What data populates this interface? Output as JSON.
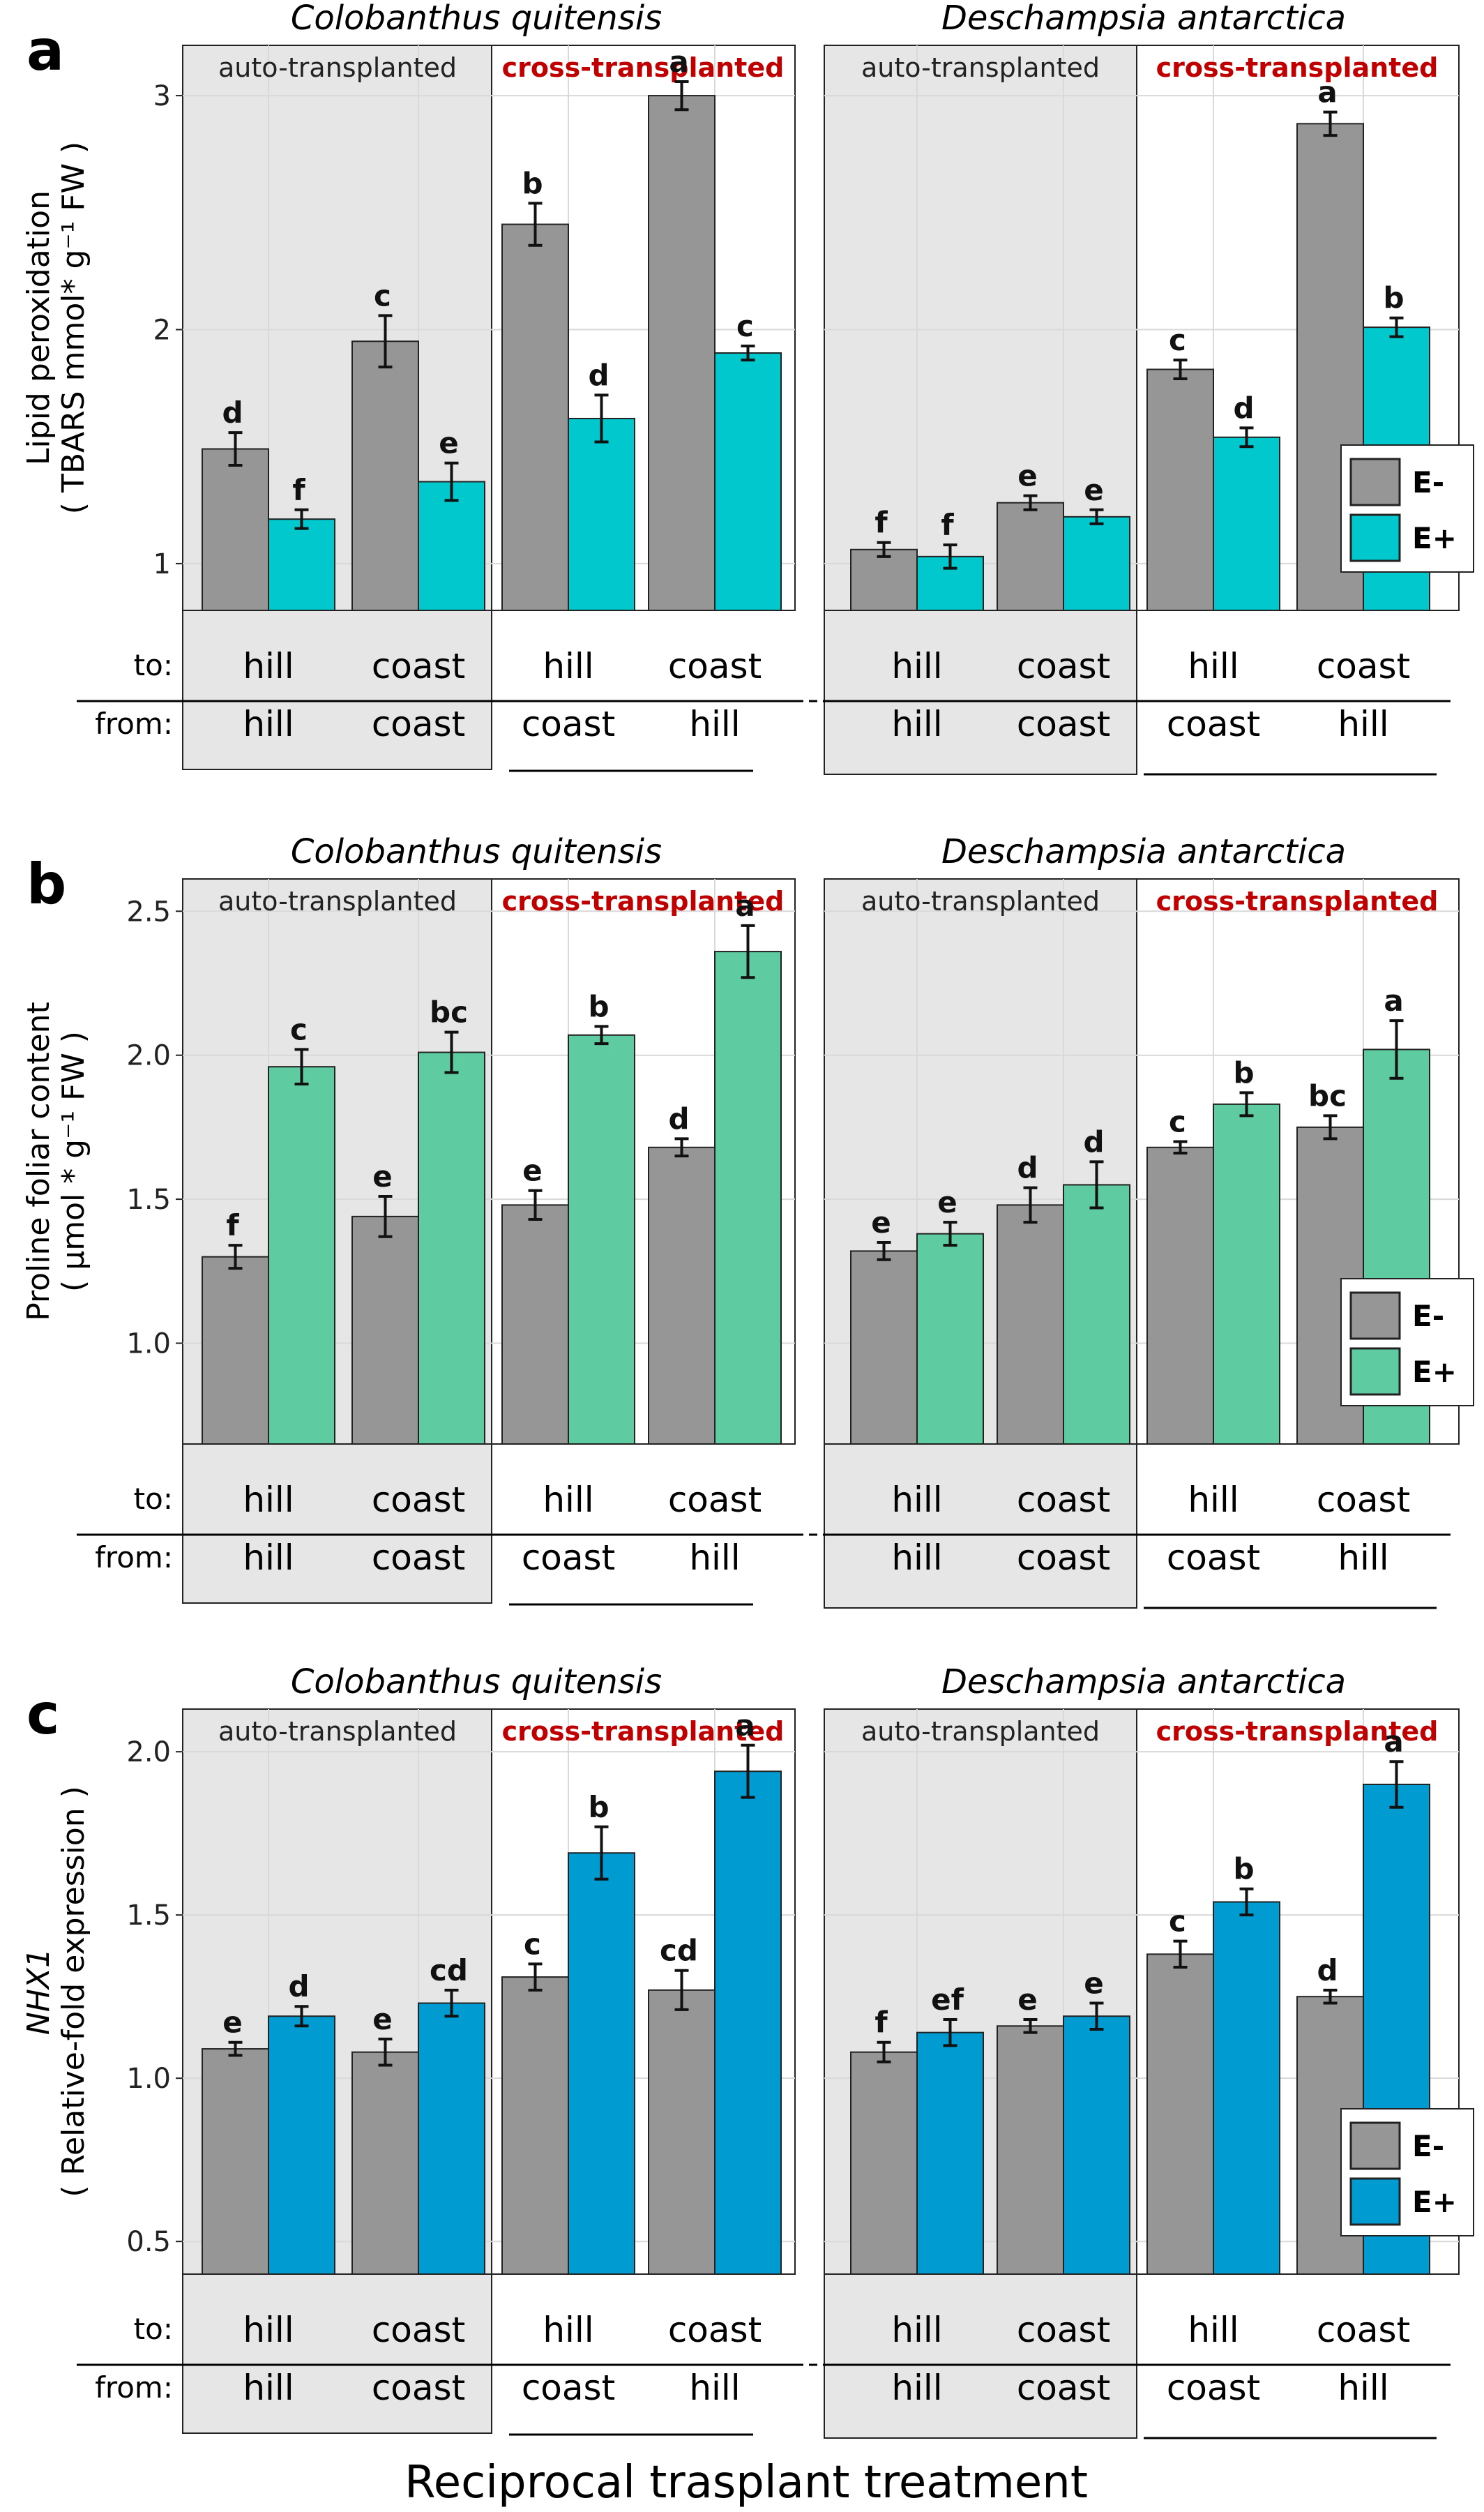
{
  "figure": {
    "xlabel": "Reciprocal trasplant treatment",
    "row_labels": {
      "to": "to:",
      "from": "from:"
    },
    "section_labels": {
      "auto": "auto-transplanted",
      "cross": "cross-transplanted"
    },
    "colors": {
      "e_minus": "#969696",
      "auto_shade": "#e6e6e6",
      "cross_label": "#c00000",
      "grid": "#d9d9d9"
    }
  },
  "chart_data": [
    {
      "type": "bar",
      "panel_letter": "a",
      "ylabel_lines": [
        "Lipid peroxidation",
        "( TBARS mmol* g⁻¹ FW )"
      ],
      "ylim": [
        0.8,
        3.2
      ],
      "yticks": [
        1,
        2,
        3
      ],
      "ytick_labels": [
        "1",
        "2",
        "3"
      ],
      "eplus_color": "#00c8cd",
      "legend": [
        "E-",
        "E+"
      ],
      "species": [
        {
          "name": "Colobanthus quitensis",
          "groups": [
            {
              "to": "hill",
              "from": "hill",
              "e_minus": 1.49,
              "e_minus_err": 0.07,
              "e_minus_letter": "d",
              "e_plus": 1.19,
              "e_plus_err": 0.04,
              "e_plus_letter": "f"
            },
            {
              "to": "coast",
              "from": "coast",
              "e_minus": 1.95,
              "e_minus_err": 0.11,
              "e_minus_letter": "c",
              "e_plus": 1.35,
              "e_plus_err": 0.08,
              "e_plus_letter": "e"
            },
            {
              "to": "hill",
              "from": "coast",
              "e_minus": 2.45,
              "e_minus_err": 0.09,
              "e_minus_letter": "b",
              "e_plus": 1.62,
              "e_plus_err": 0.1,
              "e_plus_letter": "d"
            },
            {
              "to": "coast",
              "from": "hill",
              "e_minus": 3.0,
              "e_minus_err": 0.06,
              "e_minus_letter": "a",
              "e_plus": 1.9,
              "e_plus_err": 0.03,
              "e_plus_letter": "c"
            }
          ]
        },
        {
          "name": "Deschampsia antarctica",
          "groups": [
            {
              "to": "hill",
              "from": "hill",
              "e_minus": 1.06,
              "e_minus_err": 0.03,
              "e_minus_letter": "f",
              "e_plus": 1.03,
              "e_plus_err": 0.05,
              "e_plus_letter": "f"
            },
            {
              "to": "coast",
              "from": "coast",
              "e_minus": 1.26,
              "e_minus_err": 0.03,
              "e_minus_letter": "e",
              "e_plus": 1.2,
              "e_plus_err": 0.03,
              "e_plus_letter": "e"
            },
            {
              "to": "hill",
              "from": "coast",
              "e_minus": 1.83,
              "e_minus_err": 0.04,
              "e_minus_letter": "c",
              "e_plus": 1.54,
              "e_plus_err": 0.04,
              "e_plus_letter": "d"
            },
            {
              "to": "coast",
              "from": "hill",
              "e_minus": 2.88,
              "e_minus_err": 0.05,
              "e_minus_letter": "a",
              "e_plus": 2.01,
              "e_plus_err": 0.04,
              "e_plus_letter": "b"
            }
          ]
        }
      ]
    },
    {
      "type": "bar",
      "panel_letter": "b",
      "ylabel_lines": [
        "Proline foliar content",
        "( µmol * g⁻¹ FW )"
      ],
      "ylim": [
        0.65,
        2.6
      ],
      "yticks": [
        1.0,
        1.5,
        2.0,
        2.5
      ],
      "ytick_labels": [
        "1.0",
        "1.5",
        "2.0",
        "2.5"
      ],
      "eplus_color": "#5ecba1",
      "legend": [
        "E-",
        "E+"
      ],
      "species": [
        {
          "name": "Colobanthus quitensis",
          "groups": [
            {
              "to": "hill",
              "from": "hill",
              "e_minus": 1.3,
              "e_minus_err": 0.04,
              "e_minus_letter": "f",
              "e_plus": 1.96,
              "e_plus_err": 0.06,
              "e_plus_letter": "c"
            },
            {
              "to": "coast",
              "from": "coast",
              "e_minus": 1.44,
              "e_minus_err": 0.07,
              "e_minus_letter": "e",
              "e_plus": 2.01,
              "e_plus_err": 0.07,
              "e_plus_letter": "bc"
            },
            {
              "to": "hill",
              "from": "coast",
              "e_minus": 1.48,
              "e_minus_err": 0.05,
              "e_minus_letter": "e",
              "e_plus": 2.07,
              "e_plus_err": 0.03,
              "e_plus_letter": "b"
            },
            {
              "to": "coast",
              "from": "hill",
              "e_minus": 1.68,
              "e_minus_err": 0.03,
              "e_minus_letter": "d",
              "e_plus": 2.36,
              "e_plus_err": 0.09,
              "e_plus_letter": "a"
            }
          ]
        },
        {
          "name": "Deschampsia antarctica",
          "groups": [
            {
              "to": "hill",
              "from": "hill",
              "e_minus": 1.32,
              "e_minus_err": 0.03,
              "e_minus_letter": "e",
              "e_plus": 1.38,
              "e_plus_err": 0.04,
              "e_plus_letter": "e"
            },
            {
              "to": "coast",
              "from": "coast",
              "e_minus": 1.48,
              "e_minus_err": 0.06,
              "e_minus_letter": "d",
              "e_plus": 1.55,
              "e_plus_err": 0.08,
              "e_plus_letter": "d"
            },
            {
              "to": "hill",
              "from": "coast",
              "e_minus": 1.68,
              "e_minus_err": 0.02,
              "e_minus_letter": "c",
              "e_plus": 1.83,
              "e_plus_err": 0.04,
              "e_plus_letter": "b"
            },
            {
              "to": "coast",
              "from": "hill",
              "e_minus": 1.75,
              "e_minus_err": 0.04,
              "e_minus_letter": "bc",
              "e_plus": 2.02,
              "e_plus_err": 0.1,
              "e_plus_letter": "a"
            }
          ]
        }
      ]
    },
    {
      "type": "bar",
      "panel_letter": "c",
      "ylabel_lines": [
        "NHX1",
        "( Relative-fold expression )"
      ],
      "ylim": [
        0.4,
        2.12
      ],
      "yticks": [
        0.5,
        1.0,
        1.5,
        2.0
      ],
      "ytick_labels": [
        "0.5",
        "1.0",
        "1.5",
        "2.0"
      ],
      "eplus_color": "#009bd1",
      "legend": [
        "E-",
        "E+"
      ],
      "species": [
        {
          "name": "Colobanthus quitensis",
          "groups": [
            {
              "to": "hill",
              "from": "hill",
              "e_minus": 1.09,
              "e_minus_err": 0.02,
              "e_minus_letter": "e",
              "e_plus": 1.19,
              "e_plus_err": 0.03,
              "e_plus_letter": "d"
            },
            {
              "to": "coast",
              "from": "coast",
              "e_minus": 1.08,
              "e_minus_err": 0.04,
              "e_minus_letter": "e",
              "e_plus": 1.23,
              "e_plus_err": 0.04,
              "e_plus_letter": "cd"
            },
            {
              "to": "hill",
              "from": "coast",
              "e_minus": 1.31,
              "e_minus_err": 0.04,
              "e_minus_letter": "c",
              "e_plus": 1.69,
              "e_plus_err": 0.08,
              "e_plus_letter": "b"
            },
            {
              "to": "coast",
              "from": "hill",
              "e_minus": 1.27,
              "e_minus_err": 0.06,
              "e_minus_letter": "cd",
              "e_plus": 1.94,
              "e_plus_err": 0.08,
              "e_plus_letter": "a"
            }
          ]
        },
        {
          "name": "Deschampsia antarctica",
          "groups": [
            {
              "to": "hill",
              "from": "hill",
              "e_minus": 1.08,
              "e_minus_err": 0.03,
              "e_minus_letter": "f",
              "e_plus": 1.14,
              "e_plus_err": 0.04,
              "e_plus_letter": "ef"
            },
            {
              "to": "coast",
              "from": "coast",
              "e_minus": 1.16,
              "e_minus_err": 0.02,
              "e_minus_letter": "e",
              "e_plus": 1.19,
              "e_plus_err": 0.04,
              "e_plus_letter": "e"
            },
            {
              "to": "hill",
              "from": "coast",
              "e_minus": 1.38,
              "e_minus_err": 0.04,
              "e_minus_letter": "c",
              "e_plus": 1.54,
              "e_plus_err": 0.04,
              "e_plus_letter": "b"
            },
            {
              "to": "coast",
              "from": "hill",
              "e_minus": 1.25,
              "e_minus_err": 0.02,
              "e_minus_letter": "d",
              "e_plus": 1.9,
              "e_plus_err": 0.07,
              "e_plus_letter": "a"
            }
          ]
        }
      ]
    }
  ]
}
